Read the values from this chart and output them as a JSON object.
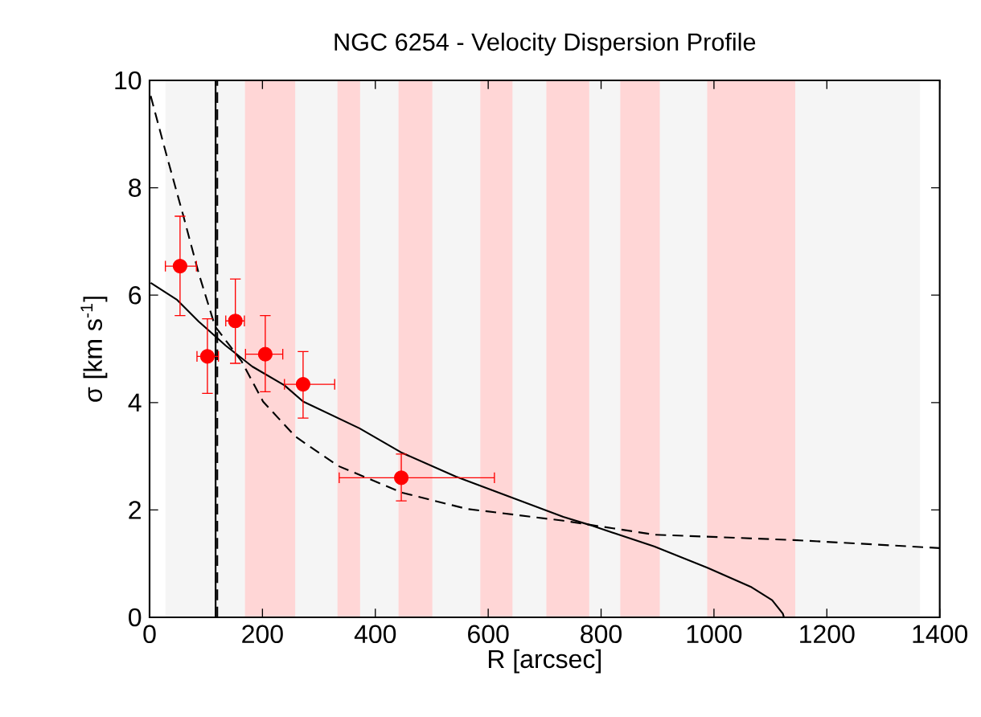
{
  "chart_data": {
    "type": "scatter",
    "title": "NGC 6254 - Velocity Dispersion Profile",
    "xlabel": "R [arcsec]",
    "ylabel": "σ [km s$^{-1}$]",
    "xlim": [
      0,
      1400
    ],
    "ylim": [
      0,
      10
    ],
    "xticks": [
      0,
      200,
      400,
      600,
      800,
      1000,
      1200,
      1400
    ],
    "yticks": [
      0,
      2,
      4,
      6,
      8,
      10
    ],
    "grid": false,
    "bands": [
      {
        "axis": "x",
        "from": 28,
        "to": 1365,
        "color": "#f5f5f5"
      },
      {
        "axis": "x",
        "from": 169,
        "to": 258,
        "color": "#ffd6d6"
      },
      {
        "axis": "x",
        "from": 333,
        "to": 373,
        "color": "#ffd6d6"
      },
      {
        "axis": "x",
        "from": 441,
        "to": 501,
        "color": "#ffd6d6"
      },
      {
        "axis": "x",
        "from": 586,
        "to": 643,
        "color": "#ffd6d6"
      },
      {
        "axis": "x",
        "from": 703,
        "to": 779,
        "color": "#ffd6d6"
      },
      {
        "axis": "x",
        "from": 834,
        "to": 904,
        "color": "#ffd6d6"
      },
      {
        "axis": "x",
        "from": 988,
        "to": 1144,
        "color": "#ffd6d6"
      }
    ],
    "ref_lines": [
      {
        "axis": "x",
        "value": 117,
        "color": "#000000",
        "line_style": "solid"
      },
      {
        "axis": "x",
        "value": 120,
        "color": "#000000",
        "line_style": "dashed"
      }
    ],
    "series": [
      {
        "type": "line",
        "color": "#000000",
        "line_style": "solid",
        "marker": "none",
        "x": [
          2,
          49,
          87,
          135,
          182,
          239,
          272,
          372,
          446,
          543,
          733,
          780,
          894,
          989,
          1065,
          1103,
          1122,
          1124
        ],
        "values": [
          6.23,
          5.91,
          5.51,
          5.06,
          4.67,
          4.32,
          4.02,
          3.52,
          3.07,
          2.62,
          1.87,
          1.72,
          1.32,
          0.92,
          0.57,
          0.32,
          0.07,
          0
        ]
      },
      {
        "type": "line",
        "color": "#000000",
        "line_style": "dashed",
        "marker": "none",
        "x": [
          2,
          30,
          59,
          87,
          116,
          163,
          201,
          258,
          334,
          448,
          562,
          733,
          894,
          1141,
          1400
        ],
        "values": [
          9.71,
          8.61,
          7.51,
          6.41,
          5.42,
          4.77,
          4.02,
          3.37,
          2.82,
          2.32,
          2.02,
          1.8,
          1.54,
          1.44,
          1.29
        ]
      },
      {
        "color": "#ff0000",
        "marker": "circle",
        "x": [
          54,
          102.5,
          152,
          205,
          272,
          446
        ],
        "values": [
          6.54,
          4.86,
          5.52,
          4.9,
          4.34,
          2.6
        ],
        "errors": [
          [
            5.62,
            7.47
          ],
          [
            4.17,
            5.56
          ],
          [
            4.73,
            6.3
          ],
          [
            4.2,
            5.62
          ],
          [
            3.71,
            4.95
          ],
          [
            2.17,
            3.04
          ]
        ],
        "xerrors": [
          [
            28,
            83
          ],
          [
            84,
            122
          ],
          [
            135,
            168
          ],
          [
            170,
            236
          ],
          [
            239,
            328
          ],
          [
            336,
            611
          ]
        ]
      }
    ]
  }
}
